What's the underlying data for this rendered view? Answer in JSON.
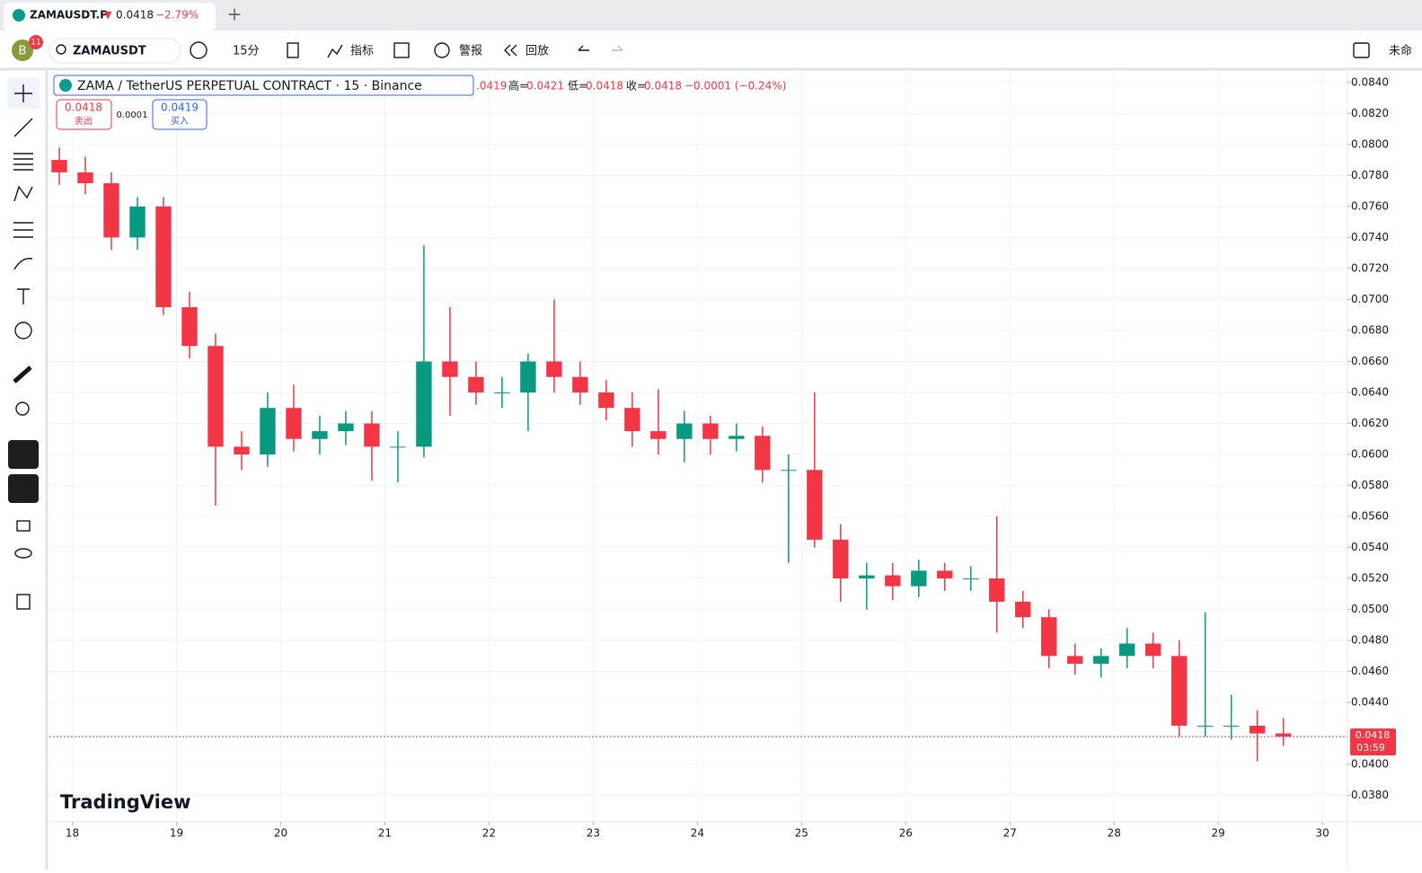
{
  "tab": {
    "symbol": "ZAMAUSDT.P",
    "price": "0.0418",
    "change": "−2.79%"
  },
  "toolbar": {
    "avatar": "B",
    "badge": "11",
    "symbol": "ZAMAUSDT",
    "interval": "15分",
    "indicators": "指标",
    "alerts": "警报",
    "replay": "回放",
    "layout": "未命"
  },
  "legend": {
    "title": "ZAMA / TetherUS PERPETUAL CONTRACT · 15 · Binance",
    "open": ".0419",
    "high_label": "高=",
    "high": "0.0421",
    "low_label": "低=",
    "low": "0.0418",
    "close_label": "收=",
    "close": "0.0418",
    "change": "−0.0001 (−0.24%)",
    "sell_price": "0.0418",
    "sell": "卖出",
    "spread": "0.0001",
    "buy_price": "0.0419",
    "buy": "买入"
  },
  "watermark": "TradingView",
  "chart_data": {
    "type": "candlestick",
    "x": [
      17.75,
      18,
      18.25,
      18.5,
      18.75,
      19,
      19.25,
      19.5,
      19.75,
      20,
      20.25,
      20.5,
      20.75,
      21,
      21.25,
      21.5,
      21.75,
      22,
      22.25,
      22.5,
      22.75,
      23,
      23.25,
      23.5,
      23.75,
      24,
      24.25,
      24.5,
      24.75,
      25,
      25.25,
      25.5,
      25.75,
      26,
      26.25,
      26.5,
      26.75,
      27,
      27.25,
      27.5,
      27.75,
      28,
      28.25,
      28.5,
      28.75,
      29,
      29.25,
      29.5
    ],
    "open": [
      0.079,
      0.0782,
      0.0775,
      0.074,
      0.076,
      0.0695,
      0.067,
      0.0605,
      0.06,
      0.063,
      0.061,
      0.0615,
      0.062,
      0.0605,
      0.0605,
      0.066,
      0.065,
      0.064,
      0.064,
      0.066,
      0.065,
      0.064,
      0.063,
      0.0615,
      0.061,
      0.062,
      0.061,
      0.0612,
      0.059,
      0.059,
      0.0545,
      0.052,
      0.0522,
      0.0515,
      0.0525,
      0.052,
      0.052,
      0.0505,
      0.0495,
      0.047,
      0.0465,
      0.047,
      0.0478,
      0.047,
      0.0425,
      0.0425,
      0.0425,
      0.042
    ],
    "high": [
      0.0798,
      0.0792,
      0.0782,
      0.0766,
      0.0766,
      0.0705,
      0.0678,
      0.0615,
      0.064,
      0.0645,
      0.0625,
      0.0628,
      0.0628,
      0.0615,
      0.0735,
      0.0695,
      0.066,
      0.065,
      0.0665,
      0.07,
      0.066,
      0.0648,
      0.064,
      0.0642,
      0.0628,
      0.0625,
      0.062,
      0.0618,
      0.06,
      0.064,
      0.0555,
      0.053,
      0.053,
      0.0532,
      0.053,
      0.0528,
      0.056,
      0.0512,
      0.05,
      0.0478,
      0.0475,
      0.0488,
      0.0485,
      0.048,
      0.0498,
      0.0445,
      0.0435,
      0.043
    ],
    "low": [
      0.0774,
      0.0768,
      0.0732,
      0.0732,
      0.069,
      0.0662,
      0.0567,
      0.059,
      0.0592,
      0.0602,
      0.06,
      0.0606,
      0.0583,
      0.0582,
      0.0598,
      0.0625,
      0.0632,
      0.063,
      0.0615,
      0.064,
      0.0632,
      0.0622,
      0.0605,
      0.06,
      0.0595,
      0.06,
      0.0602,
      0.0582,
      0.053,
      0.054,
      0.0505,
      0.05,
      0.0506,
      0.0508,
      0.0512,
      0.0512,
      0.0485,
      0.0488,
      0.0462,
      0.0458,
      0.0456,
      0.0462,
      0.0462,
      0.0418,
      0.0418,
      0.0416,
      0.0402,
      0.0412
    ],
    "close": [
      0.0782,
      0.0775,
      0.074,
      0.076,
      0.0695,
      0.067,
      0.0605,
      0.06,
      0.063,
      0.061,
      0.0615,
      0.062,
      0.0605,
      0.0605,
      0.066,
      0.065,
      0.064,
      0.064,
      0.066,
      0.065,
      0.064,
      0.063,
      0.0615,
      0.061,
      0.062,
      0.061,
      0.0612,
      0.059,
      0.059,
      0.0545,
      0.052,
      0.0522,
      0.0515,
      0.0525,
      0.052,
      0.052,
      0.0505,
      0.0495,
      0.047,
      0.0465,
      0.047,
      0.0478,
      0.047,
      0.0425,
      0.0425,
      0.0425,
      0.042,
      0.0418
    ],
    "up_color": "#089981",
    "down_color": "#f23645",
    "xlim": [
      17.78,
      30.24
    ],
    "xticks": [
      18,
      19,
      20,
      21,
      22,
      23,
      24,
      25,
      26,
      27,
      28,
      29,
      30
    ],
    "ylim": [
      0.0363,
      0.0848
    ],
    "yticks": [
      {
        "value": 0.038,
        "label": "0.0380"
      },
      {
        "value": 0.04,
        "label": "0.0400"
      },
      {
        "value": 0.044,
        "label": "0.0440"
      },
      {
        "value": 0.046,
        "label": "0.0460"
      },
      {
        "value": 0.048,
        "label": "0.0480"
      },
      {
        "value": 0.05,
        "label": "0.0500"
      },
      {
        "value": 0.052,
        "label": "0.0520"
      },
      {
        "value": 0.054,
        "label": "0.0540"
      },
      {
        "value": 0.056,
        "label": "0.0560"
      },
      {
        "value": 0.058,
        "label": "0.0580"
      },
      {
        "value": 0.06,
        "label": "0.0600"
      },
      {
        "value": 0.062,
        "label": "0.0620"
      },
      {
        "value": 0.064,
        "label": "0.0640"
      },
      {
        "value": 0.066,
        "label": "0.0660"
      },
      {
        "value": 0.068,
        "label": "0.0680"
      },
      {
        "value": 0.07,
        "label": "0.0700"
      },
      {
        "value": 0.072,
        "label": "0.0720"
      },
      {
        "value": 0.074,
        "label": "0.0740"
      },
      {
        "value": 0.076,
        "label": "0.0760"
      },
      {
        "value": 0.078,
        "label": "0.0780"
      },
      {
        "value": 0.08,
        "label": "0.0800"
      },
      {
        "value": 0.082,
        "label": "0.0820"
      },
      {
        "value": 0.084,
        "label": "0.0840"
      }
    ],
    "grid": true,
    "last_price": {
      "value": 0.0418,
      "label": "0.0418"
    },
    "countdown": "03:59"
  }
}
